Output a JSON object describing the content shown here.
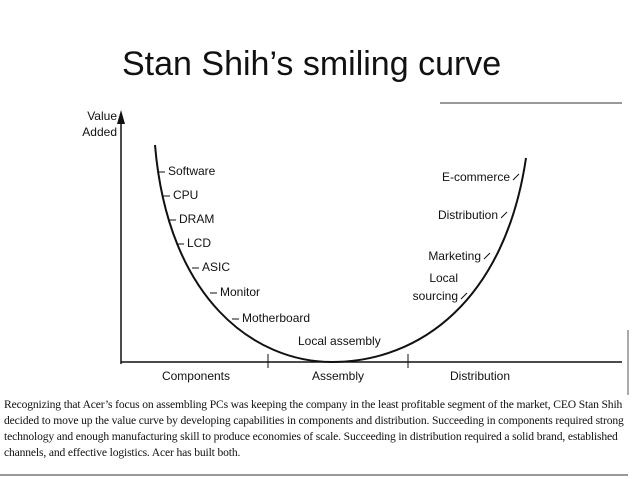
{
  "title": "Stan Shih’s smiling curve",
  "figure": {
    "y_axis_label": [
      "Value",
      "Added"
    ],
    "sections": [
      "Components",
      "Assembly",
      "Distribution"
    ],
    "left_labels": [
      "Software",
      "CPU",
      "DRAM",
      "LCD",
      "ASIC",
      "Monitor",
      "Motherboard"
    ],
    "bottom_label": "Local assembly",
    "right_labels": [
      "E-commerce",
      "Distribution",
      "Marketing",
      "Local",
      "sourcing"
    ]
  },
  "caption": "Recognizing that Acer’s focus on assembling PCs was keeping the company in the least profitable segment of the market, CEO Stan Shih decided to move up the value curve by developing capabilities in components and distribution. Succeeding in components required strong technology and enough manufacturing skill to produce economies of scale. Succeeding in distribution required a solid brand, established channels, and effective logistics. Acer has built both."
}
